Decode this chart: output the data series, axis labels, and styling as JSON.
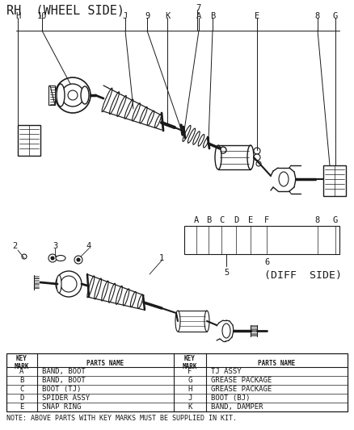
{
  "title": "RH  (WHEEL SIDE)",
  "num7": "7",
  "diff_side": "(DIFF  SIDE)",
  "note": "NOTE: ABOVE PARTS WITH KEY MARKS MUST BE SUPPLIED IN KIT.",
  "table_rows": [
    [
      "A",
      "BAND, BOOT",
      "F",
      "TJ ASSY"
    ],
    [
      "B",
      "BAND, BOOT",
      "G",
      "GREASE PACKAGE"
    ],
    [
      "C",
      "BOOT (TJ)",
      "H",
      "GREASE PACKAGE"
    ],
    [
      "D",
      "SPIDER ASSY",
      "J",
      "BOOT (BJ)"
    ],
    [
      "E",
      "SNAP RING",
      "K",
      "BAND, DAMPER"
    ]
  ],
  "bg": "#ffffff",
  "lc": "#1a1a1a"
}
